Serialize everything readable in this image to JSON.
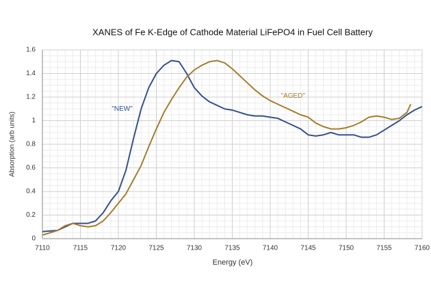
{
  "chart_data": {
    "type": "line",
    "title": "XANES of Fe K-Edge of Cathode Material LiFePO4 in Fuel Cell Battery",
    "x_label": "Energy (eV)",
    "y_label": "Absorption (arb units)",
    "xlim": [
      7110,
      7160
    ],
    "xticks": [
      7110,
      7115,
      7120,
      7125,
      7130,
      7135,
      7140,
      7145,
      7150,
      7155,
      7160
    ],
    "ylim": [
      0,
      1.6
    ],
    "yticks": [
      0,
      0.2,
      0.4,
      0.6,
      0.8,
      1,
      1.2,
      1.4,
      1.6
    ],
    "grid": true,
    "minor_grid": true,
    "series": [
      {
        "name": "\"NEW\"",
        "color": "#34508f",
        "x": [
          7110,
          7112,
          7113,
          7114,
          7115,
          7116,
          7117,
          7118,
          7119,
          7120,
          7121,
          7122,
          7123,
          7124,
          7125,
          7126,
          7127,
          7128,
          7129,
          7130,
          7131,
          7132,
          7133,
          7134,
          7135,
          7136,
          7137,
          7138,
          7139,
          7140,
          7141,
          7142,
          7143,
          7144,
          7145,
          7146,
          7147,
          7148,
          7149,
          7150,
          7151,
          7152,
          7153,
          7154,
          7155,
          7156,
          7157,
          7158,
          7159,
          7160
        ],
        "values": [
          0.06,
          0.07,
          0.1,
          0.13,
          0.13,
          0.13,
          0.15,
          0.22,
          0.32,
          0.4,
          0.58,
          0.85,
          1.1,
          1.28,
          1.4,
          1.47,
          1.51,
          1.5,
          1.4,
          1.28,
          1.21,
          1.16,
          1.13,
          1.1,
          1.09,
          1.07,
          1.05,
          1.04,
          1.04,
          1.03,
          1.02,
          0.99,
          0.96,
          0.93,
          0.88,
          0.87,
          0.88,
          0.9,
          0.88,
          0.88,
          0.88,
          0.86,
          0.86,
          0.88,
          0.92,
          0.96,
          1.0,
          1.05,
          1.09,
          1.12
        ]
      },
      {
        "name": "\"AGED\"",
        "color": "#a47d2c",
        "x": [
          7110,
          7111,
          7112,
          7113,
          7114,
          7115,
          7116,
          7117,
          7118,
          7119,
          7120,
          7121,
          7122,
          7123,
          7124,
          7125,
          7126,
          7127,
          7128,
          7129,
          7130,
          7131,
          7132,
          7133,
          7134,
          7135,
          7136,
          7137,
          7138,
          7139,
          7140,
          7141,
          7142,
          7143,
          7144,
          7145,
          7146,
          7147,
          7148,
          7149,
          7150,
          7151,
          7152,
          7153,
          7154,
          7155,
          7156,
          7157,
          7158,
          7158.5
        ],
        "values": [
          0.03,
          0.05,
          0.07,
          0.11,
          0.13,
          0.11,
          0.1,
          0.11,
          0.15,
          0.22,
          0.3,
          0.38,
          0.5,
          0.62,
          0.78,
          0.93,
          1.07,
          1.18,
          1.28,
          1.37,
          1.43,
          1.47,
          1.5,
          1.51,
          1.49,
          1.44,
          1.38,
          1.32,
          1.26,
          1.21,
          1.17,
          1.14,
          1.11,
          1.08,
          1.05,
          1.03,
          0.98,
          0.95,
          0.93,
          0.93,
          0.94,
          0.96,
          0.99,
          1.03,
          1.04,
          1.03,
          1.01,
          1.02,
          1.07,
          1.14
        ]
      }
    ],
    "annotations": [
      {
        "text": "\"NEW\"",
        "x": 7120.5,
        "y": 1.1,
        "color": "#34508f"
      },
      {
        "text": "\"AGED\"",
        "x": 7143,
        "y": 1.21,
        "color": "#a47d2c"
      }
    ]
  }
}
